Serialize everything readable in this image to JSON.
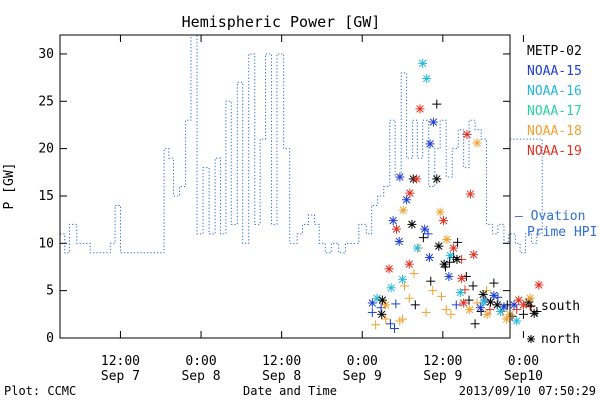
{
  "chart_data": {
    "type": "scatter",
    "title": "Hemispheric Power [GW]",
    "xlabel": "Date and Time",
    "ylabel": "P [GW]",
    "ylim": [
      0,
      32
    ],
    "y_ticks": [
      0,
      5,
      10,
      15,
      20,
      25,
      30
    ],
    "x_unit": "hours since 2013/09/07 00:00",
    "xlim": [
      3,
      70
    ],
    "x_ticks": [
      {
        "x": 12,
        "time": "12:00",
        "date": "Sep 7"
      },
      {
        "x": 24,
        "time": "0:00",
        "date": "Sep 8"
      },
      {
        "x": 36,
        "time": "12:00",
        "date": "Sep 8"
      },
      {
        "x": 48,
        "time": "0:00",
        "date": "Sep 9"
      },
      {
        "x": 60,
        "time": "12:00",
        "date": "Sep 9"
      },
      {
        "x": 72,
        "time": "0:00",
        "date": "Sep10"
      }
    ],
    "footer_left": "Plot: CCMC",
    "footer_right": "2013/09/10 07:50:29",
    "legend": {
      "placement": "right",
      "satellites": [
        {
          "name": "METP-02",
          "color": "#000000"
        },
        {
          "name": "NOAA-15",
          "color": "#1f3fd0"
        },
        {
          "name": "NOAA-16",
          "color": "#22b8d8"
        },
        {
          "name": "NOAA-17",
          "color": "#2ad4a0"
        },
        {
          "name": "NOAA-18",
          "color": "#f0a030"
        },
        {
          "name": "NOAA-19",
          "color": "#e03020"
        }
      ],
      "ovation_line1": "— Ovation",
      "ovation_line2": "Prime HPI",
      "ovation_color": "#3070d0",
      "south_label": "south",
      "north_label": "north"
    },
    "ovation": [
      [
        3,
        11
      ],
      [
        3.7,
        9
      ],
      [
        4.4,
        12
      ],
      [
        5.5,
        10
      ],
      [
        7.5,
        9
      ],
      [
        10.5,
        10
      ],
      [
        11.2,
        14
      ],
      [
        12,
        9
      ],
      [
        17.5,
        9
      ],
      [
        18.5,
        20
      ],
      [
        19.2,
        19
      ],
      [
        19.9,
        15
      ],
      [
        20.8,
        16
      ],
      [
        21.7,
        23
      ],
      [
        22.5,
        32
      ],
      [
        23.4,
        11
      ],
      [
        24.3,
        18
      ],
      [
        25.2,
        11
      ],
      [
        26.1,
        19
      ],
      [
        26.9,
        11
      ],
      [
        27.7,
        25
      ],
      [
        28.5,
        12
      ],
      [
        29.4,
        27
      ],
      [
        30.2,
        10
      ],
      [
        31.1,
        30
      ],
      [
        32,
        12
      ],
      [
        32.8,
        21
      ],
      [
        33.6,
        30
      ],
      [
        34.5,
        12
      ],
      [
        35.3,
        30
      ],
      [
        36.3,
        20
      ],
      [
        37.2,
        10
      ],
      [
        38.3,
        11
      ],
      [
        39.1,
        12
      ],
      [
        40,
        13
      ],
      [
        40.9,
        12
      ],
      [
        41.6,
        10
      ],
      [
        42.5,
        9
      ],
      [
        43.4,
        10
      ],
      [
        44.5,
        9
      ],
      [
        45.5,
        10
      ],
      [
        47.5,
        12
      ],
      [
        48.6,
        11
      ],
      [
        49.4,
        14
      ],
      [
        50.3,
        15
      ],
      [
        51.2,
        16
      ],
      [
        52.1,
        23
      ],
      [
        52.9,
        17
      ],
      [
        53.8,
        28
      ],
      [
        54.6,
        19
      ],
      [
        55.5,
        23
      ],
      [
        56.2,
        19
      ],
      [
        57,
        23
      ],
      [
        57.9,
        16
      ],
      [
        58.8,
        20
      ],
      [
        59.6,
        23
      ],
      [
        60.5,
        17
      ],
      [
        61.4,
        20
      ],
      [
        62.3,
        22
      ],
      [
        63.1,
        18
      ],
      [
        63.9,
        23
      ],
      [
        64.8,
        22
      ],
      [
        65.7,
        21
      ],
      [
        66.5,
        12
      ],
      [
        67.4,
        11
      ],
      [
        68.2,
        12
      ],
      [
        69.1,
        10
      ],
      [
        69.8,
        11
      ],
      [
        70.8,
        10
      ],
      [
        71.5,
        9
      ],
      [
        72.3,
        11
      ],
      [
        73.2,
        10
      ],
      [
        74,
        11
      ],
      [
        74.8,
        21
      ]
    ],
    "south": [
      [
        49.5,
        2.7,
        "#1f3fd0"
      ],
      [
        50.0,
        1.4,
        "#f0a030"
      ],
      [
        50.8,
        3.2,
        "#1f3fd0"
      ],
      [
        51.5,
        2.0,
        "#f0a030"
      ],
      [
        52.2,
        1.5,
        "#1f3fd0"
      ],
      [
        53.0,
        3.6,
        "#1f3fd0"
      ],
      [
        53.6,
        1.8,
        "#f0a030"
      ],
      [
        54.3,
        5.5,
        "#f0a030"
      ],
      [
        55.0,
        4.2,
        "#f0a030"
      ],
      [
        55.7,
        6.8,
        "#f0a030"
      ],
      [
        56.4,
        9.5,
        "#f0a030"
      ],
      [
        57.1,
        10.6,
        "#000000"
      ],
      [
        57.8,
        11.0,
        "#1f3fd0"
      ],
      [
        58.5,
        5.0,
        "#f0a030"
      ],
      [
        59.1,
        24.7,
        "#000000"
      ],
      [
        59.8,
        4.4,
        "#f0a030"
      ],
      [
        60.4,
        7.5,
        "#000000"
      ],
      [
        61.0,
        8.0,
        "#000000"
      ],
      [
        61.6,
        8.5,
        "#000000"
      ],
      [
        62.2,
        10.1,
        "#000000"
      ],
      [
        62.8,
        8.3,
        "#e03020"
      ],
      [
        63.3,
        5.1,
        "#e03020"
      ],
      [
        63.9,
        4.0,
        "#000000"
      ],
      [
        64.5,
        5.5,
        "#000000"
      ],
      [
        65.1,
        3.7,
        "#f0a030"
      ],
      [
        65.7,
        2.8,
        "#000000"
      ],
      [
        66.3,
        4.0,
        "#1f3fd0"
      ],
      [
        67.0,
        3.0,
        "#e03020"
      ],
      [
        67.6,
        5.8,
        "#000000"
      ],
      [
        68.2,
        4.3,
        "#1f3fd0"
      ],
      [
        68.9,
        2.8,
        "#f0a030"
      ],
      [
        69.6,
        3.5,
        "#000000"
      ],
      [
        70.3,
        2.3,
        "#000000"
      ],
      [
        71.0,
        3.0,
        "#e03020"
      ],
      [
        72.0,
        2.5,
        "#000000"
      ],
      [
        73.0,
        3.3,
        "#e03020"
      ],
      [
        74.0,
        2.8,
        "#000000"
      ],
      [
        55.9,
        3.5,
        "#000000"
      ],
      [
        57.5,
        2.7,
        "#f0a030"
      ],
      [
        60.5,
        3.0,
        "#f0a030"
      ],
      [
        62.0,
        3.5,
        "#1f3fd0"
      ],
      [
        64.8,
        1.5,
        "#000000"
      ],
      [
        66.5,
        5.0,
        "#f0a030"
      ],
      [
        52.8,
        1.0,
        "#1f3fd0"
      ],
      [
        54.0,
        2.0,
        "#f0a030"
      ],
      [
        63.5,
        6.5,
        "#000000"
      ],
      [
        58.2,
        6.0,
        "#000000"
      ],
      [
        61.2,
        2.5,
        "#f0a030"
      ]
    ],
    "north": [
      [
        49.5,
        3.7,
        "#1f3fd0"
      ],
      [
        50.2,
        4.2,
        "#22b8d8"
      ],
      [
        50.9,
        2.5,
        "#000000"
      ],
      [
        51.5,
        3.5,
        "#f0a030"
      ],
      [
        52.0,
        7.3,
        "#e03020"
      ],
      [
        52.6,
        12.4,
        "#1f3fd0"
      ],
      [
        53.1,
        11.5,
        "#e03020"
      ],
      [
        53.6,
        17.0,
        "#1f3fd0"
      ],
      [
        54.1,
        13.5,
        "#f0a030"
      ],
      [
        54.6,
        14.6,
        "#1f3fd0"
      ],
      [
        55.1,
        15.3,
        "#e03020"
      ],
      [
        55.6,
        16.8,
        "#000000"
      ],
      [
        56.1,
        16.8,
        "#e03020"
      ],
      [
        56.6,
        24.2,
        "#e03020"
      ],
      [
        57.0,
        29.0,
        "#22b8d8"
      ],
      [
        57.6,
        27.4,
        "#22b8d8"
      ],
      [
        58.1,
        20.5,
        "#1f3fd0"
      ],
      [
        58.6,
        22.8,
        "#1f3fd0"
      ],
      [
        59.1,
        16.8,
        "#000000"
      ],
      [
        59.6,
        13.3,
        "#f0a030"
      ],
      [
        60.1,
        12.4,
        "#e03020"
      ],
      [
        60.6,
        10.4,
        "#f0a030"
      ],
      [
        61.1,
        8.7,
        "#22b8d8"
      ],
      [
        61.6,
        9.5,
        "#e03020"
      ],
      [
        62.1,
        8.3,
        "#000000"
      ],
      [
        62.6,
        4.8,
        "#22b8d8"
      ],
      [
        63.1,
        3.7,
        "#e03020"
      ],
      [
        63.6,
        21.5,
        "#e03020"
      ],
      [
        64.1,
        15.2,
        "#e03020"
      ],
      [
        64.6,
        8.8,
        "#e03020"
      ],
      [
        65.1,
        20.6,
        "#f0a030"
      ],
      [
        65.6,
        3.2,
        "#1f3fd0"
      ],
      [
        66.1,
        3.8,
        "#22b8d8"
      ],
      [
        66.6,
        2.5,
        "#f0a030"
      ],
      [
        67.1,
        3.8,
        "#000000"
      ],
      [
        67.6,
        4.5,
        "#1f3fd0"
      ],
      [
        68.1,
        3.5,
        "#000000"
      ],
      [
        68.6,
        2.8,
        "#22b8d8"
      ],
      [
        69.1,
        3.3,
        "#1f3fd0"
      ],
      [
        70.0,
        2.5,
        "#f0a030"
      ],
      [
        70.6,
        3.5,
        "#1f3fd0"
      ],
      [
        71.3,
        4.0,
        "#e03020"
      ],
      [
        72.0,
        3.5,
        "#e03020"
      ],
      [
        72.8,
        3.8,
        "#000000"
      ],
      [
        73.6,
        2.6,
        "#000000"
      ],
      [
        74.3,
        5.6,
        "#e03020"
      ],
      [
        55.4,
        12.0,
        "#000000"
      ],
      [
        57.3,
        11.5,
        "#1f3fd0"
      ],
      [
        54.0,
        6.2,
        "#22b8d8"
      ],
      [
        58.0,
        8.5,
        "#1f3fd0"
      ],
      [
        60.2,
        7.8,
        "#000000"
      ],
      [
        62.8,
        6.3,
        "#e03020"
      ],
      [
        56.2,
        9.5,
        "#22b8d8"
      ],
      [
        51.0,
        4.0,
        "#000000"
      ],
      [
        52.3,
        5.3,
        "#22b8d8"
      ],
      [
        64.0,
        3.0,
        "#f0a030"
      ],
      [
        66.0,
        4.6,
        "#000000"
      ],
      [
        69.5,
        2.0,
        "#f0a030"
      ],
      [
        71.0,
        1.8,
        "#22b8d8"
      ],
      [
        73.0,
        4.2,
        "#f0a030"
      ],
      [
        60.9,
        6.5,
        "#1f3fd0"
      ],
      [
        59.4,
        9.7,
        "#000000"
      ],
      [
        55.0,
        7.8,
        "#e03020"
      ],
      [
        53.5,
        10.2,
        "#1f3fd0"
      ]
    ]
  }
}
